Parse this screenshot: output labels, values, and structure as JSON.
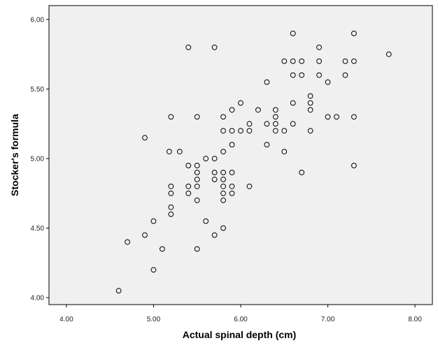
{
  "chart_data": {
    "type": "scatter",
    "xlabel": "Actual spinal depth (cm)",
    "ylabel": "Stocker's formula",
    "xlim": [
      3.8,
      8.2
    ],
    "ylim": [
      3.95,
      6.1
    ],
    "x_ticks": [
      "4.00",
      "5.00",
      "6.00",
      "7.00",
      "8.00"
    ],
    "y_ticks": [
      "4.00",
      "4.50",
      "5.00",
      "5.50",
      "6.00"
    ],
    "grid": false,
    "plot_background": "#f0f0f0",
    "marker": "open-circle",
    "marker_color": "#000000",
    "points": [
      {
        "x": 4.6,
        "y": 4.05
      },
      {
        "x": 4.7,
        "y": 4.4
      },
      {
        "x": 4.9,
        "y": 4.45
      },
      {
        "x": 4.9,
        "y": 5.15
      },
      {
        "x": 5.0,
        "y": 4.2
      },
      {
        "x": 5.0,
        "y": 4.55
      },
      {
        "x": 5.1,
        "y": 4.35
      },
      {
        "x": 5.18,
        "y": 5.05
      },
      {
        "x": 5.2,
        "y": 4.6
      },
      {
        "x": 5.2,
        "y": 4.65
      },
      {
        "x": 5.2,
        "y": 4.75
      },
      {
        "x": 5.2,
        "y": 4.8
      },
      {
        "x": 5.2,
        "y": 5.3
      },
      {
        "x": 5.3,
        "y": 5.05
      },
      {
        "x": 5.4,
        "y": 4.75
      },
      {
        "x": 5.4,
        "y": 4.8
      },
      {
        "x": 5.4,
        "y": 4.95
      },
      {
        "x": 5.4,
        "y": 5.8
      },
      {
        "x": 5.5,
        "y": 4.35
      },
      {
        "x": 5.5,
        "y": 4.7
      },
      {
        "x": 5.5,
        "y": 4.8
      },
      {
        "x": 5.5,
        "y": 4.85
      },
      {
        "x": 5.5,
        "y": 4.9
      },
      {
        "x": 5.5,
        "y": 4.95
      },
      {
        "x": 5.5,
        "y": 5.3
      },
      {
        "x": 5.6,
        "y": 4.55
      },
      {
        "x": 5.6,
        "y": 5.0
      },
      {
        "x": 5.7,
        "y": 4.45
      },
      {
        "x": 5.7,
        "y": 4.85
      },
      {
        "x": 5.7,
        "y": 4.9
      },
      {
        "x": 5.7,
        "y": 5.0
      },
      {
        "x": 5.7,
        "y": 5.8
      },
      {
        "x": 5.8,
        "y": 4.5
      },
      {
        "x": 5.8,
        "y": 4.7
      },
      {
        "x": 5.8,
        "y": 4.75
      },
      {
        "x": 5.8,
        "y": 4.8
      },
      {
        "x": 5.8,
        "y": 4.85
      },
      {
        "x": 5.8,
        "y": 4.9
      },
      {
        "x": 5.8,
        "y": 5.05
      },
      {
        "x": 5.8,
        "y": 5.2
      },
      {
        "x": 5.8,
        "y": 5.3
      },
      {
        "x": 5.9,
        "y": 4.75
      },
      {
        "x": 5.9,
        "y": 4.8
      },
      {
        "x": 5.9,
        "y": 4.9
      },
      {
        "x": 5.9,
        "y": 5.1
      },
      {
        "x": 5.9,
        "y": 5.2
      },
      {
        "x": 5.9,
        "y": 5.35
      },
      {
        "x": 6.0,
        "y": 5.2
      },
      {
        "x": 6.0,
        "y": 5.4
      },
      {
        "x": 6.1,
        "y": 4.8
      },
      {
        "x": 6.1,
        "y": 5.2
      },
      {
        "x": 6.1,
        "y": 5.25
      },
      {
        "x": 6.2,
        "y": 5.35
      },
      {
        "x": 6.3,
        "y": 5.1
      },
      {
        "x": 6.3,
        "y": 5.25
      },
      {
        "x": 6.3,
        "y": 5.55
      },
      {
        "x": 6.4,
        "y": 5.2
      },
      {
        "x": 6.4,
        "y": 5.25
      },
      {
        "x": 6.4,
        "y": 5.3
      },
      {
        "x": 6.4,
        "y": 5.35
      },
      {
        "x": 6.5,
        "y": 5.05
      },
      {
        "x": 6.5,
        "y": 5.2
      },
      {
        "x": 6.5,
        "y": 5.7
      },
      {
        "x": 6.6,
        "y": 5.25
      },
      {
        "x": 6.6,
        "y": 5.4
      },
      {
        "x": 6.6,
        "y": 5.6
      },
      {
        "x": 6.6,
        "y": 5.7
      },
      {
        "x": 6.6,
        "y": 5.9
      },
      {
        "x": 6.7,
        "y": 4.9
      },
      {
        "x": 6.7,
        "y": 5.6
      },
      {
        "x": 6.7,
        "y": 5.7
      },
      {
        "x": 6.8,
        "y": 5.2
      },
      {
        "x": 6.8,
        "y": 5.35
      },
      {
        "x": 6.8,
        "y": 5.4
      },
      {
        "x": 6.8,
        "y": 5.45
      },
      {
        "x": 6.9,
        "y": 5.6
      },
      {
        "x": 6.9,
        "y": 5.7
      },
      {
        "x": 6.9,
        "y": 5.8
      },
      {
        "x": 7.0,
        "y": 5.3
      },
      {
        "x": 7.0,
        "y": 5.55
      },
      {
        "x": 7.1,
        "y": 5.3
      },
      {
        "x": 7.2,
        "y": 5.6
      },
      {
        "x": 7.2,
        "y": 5.7
      },
      {
        "x": 7.3,
        "y": 4.95
      },
      {
        "x": 7.3,
        "y": 5.3
      },
      {
        "x": 7.3,
        "y": 5.7
      },
      {
        "x": 7.3,
        "y": 5.9
      },
      {
        "x": 7.7,
        "y": 5.75
      }
    ]
  }
}
